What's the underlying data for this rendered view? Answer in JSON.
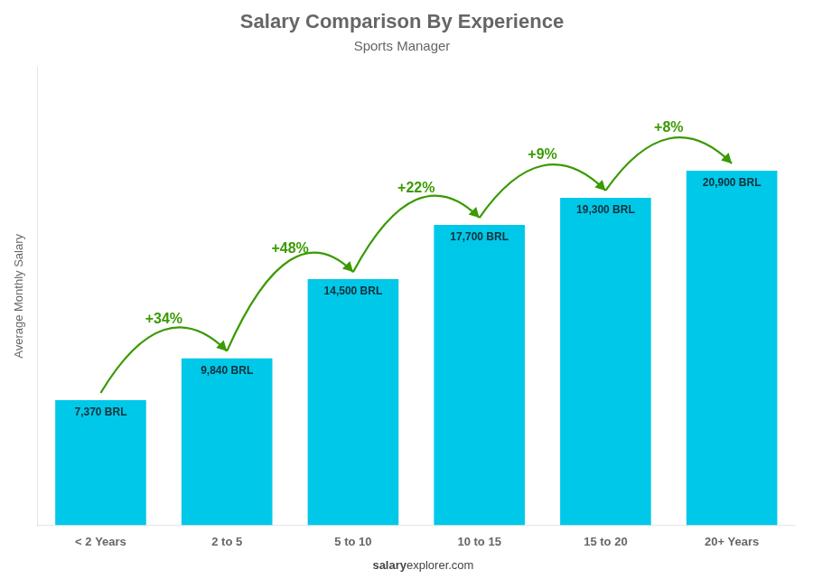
{
  "chart_data": {
    "type": "bar",
    "title": "Salary Comparison By Experience",
    "subtitle": "Sports Manager",
    "ylabel": "Average Monthly Salary",
    "categories": [
      "< 2 Years",
      "2 to 5",
      "5 to 10",
      "10 to 15",
      "15 to 20",
      "20+ Years"
    ],
    "values": [
      7370,
      9840,
      14500,
      17700,
      19300,
      20900
    ],
    "value_labels": [
      "7,370 BRL",
      "9,840 BRL",
      "14,500 BRL",
      "17,700 BRL",
      "19,300 BRL",
      "20,900 BRL"
    ],
    "data_labels": true,
    "color": "#00C8E8",
    "ylim": [
      0,
      27000
    ],
    "grid": false,
    "tick_labels": "x",
    "annotations": [
      {
        "text": "+34%",
        "from": "< 2 Years",
        "to": "2 to 5"
      },
      {
        "text": "+48%",
        "from": "2 to 5",
        "to": "5 to 10"
      },
      {
        "text": "+22%",
        "from": "5 to 10",
        "to": "10 to 15"
      },
      {
        "text": "+9%",
        "from": "10 to 15",
        "to": "15 to 20"
      },
      {
        "text": "+8%",
        "from": "15 to 20",
        "to": "20+ Years"
      }
    ],
    "watermark": [
      "salary",
      "explorer.com"
    ]
  }
}
